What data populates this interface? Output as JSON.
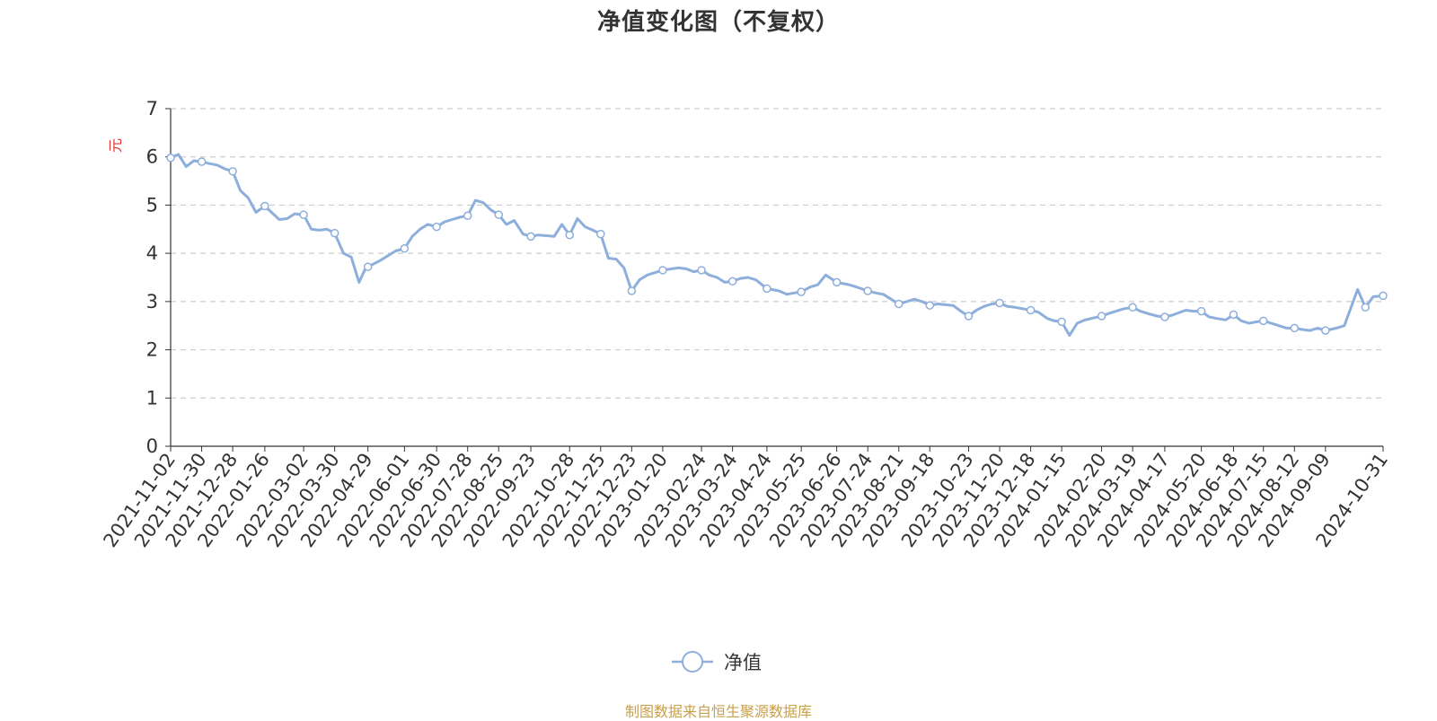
{
  "title": "净值变化图（不复权）",
  "source_note": "制图数据来自恒生聚源数据库",
  "legend": {
    "label": "净值",
    "icon": "circle-line-icon"
  },
  "colors": {
    "series": "#8eaedb",
    "axis": "#333333",
    "grid": "#cccccc",
    "unit": "#e03030",
    "source": "#c8a04a"
  },
  "chart_data": {
    "type": "line",
    "title": "净值变化图（不复权）",
    "ylabel": "元",
    "ylim": [
      0,
      7
    ],
    "yticks": [
      0,
      1,
      2,
      3,
      4,
      5,
      6,
      7
    ],
    "grid": true,
    "legend_position": "bottom-center",
    "x_tick_labels": [
      "2021-11-02",
      "2021-11-30",
      "2021-12-28",
      "2022-01-26",
      "2022-03-02",
      "2022-03-30",
      "2022-04-29",
      "2022-06-01",
      "2022-06-30",
      "2022-07-28",
      "2022-08-25",
      "2022-09-23",
      "2022-10-28",
      "2022-11-25",
      "2022-12-23",
      "2023-01-20",
      "2023-02-24",
      "2023-03-24",
      "2023-04-24",
      "2023-05-25",
      "2023-06-26",
      "2023-07-24",
      "2023-08-21",
      "2023-09-18",
      "2023-10-23",
      "2023-11-20",
      "2023-12-18",
      "2024-01-15",
      "2024-02-20",
      "2024-03-19",
      "2024-04-17",
      "2024-05-20",
      "2024-06-18",
      "2024-07-15",
      "2024-08-12",
      "2024-09-09",
      "2024-10-31"
    ],
    "series": [
      {
        "name": "净值",
        "x": [
          "2021-11-02",
          "2021-11-09",
          "2021-11-16",
          "2021-11-23",
          "2021-11-30",
          "2021-12-07",
          "2021-12-14",
          "2021-12-21",
          "2021-12-28",
          "2022-01-04",
          "2022-01-11",
          "2022-01-18",
          "2022-01-26",
          "2022-02-08",
          "2022-02-15",
          "2022-02-22",
          "2022-03-02",
          "2022-03-09",
          "2022-03-16",
          "2022-03-23",
          "2022-03-30",
          "2022-04-07",
          "2022-04-14",
          "2022-04-21",
          "2022-04-27",
          "2022-04-29",
          "2022-05-10",
          "2022-05-17",
          "2022-05-24",
          "2022-06-01",
          "2022-06-08",
          "2022-06-15",
          "2022-06-22",
          "2022-06-30",
          "2022-07-07",
          "2022-07-14",
          "2022-07-21",
          "2022-07-28",
          "2022-08-04",
          "2022-08-11",
          "2022-08-18",
          "2022-08-25",
          "2022-09-01",
          "2022-09-08",
          "2022-09-16",
          "2022-09-23",
          "2022-09-30",
          "2022-10-14",
          "2022-10-21",
          "2022-10-28",
          "2022-11-04",
          "2022-11-11",
          "2022-11-18",
          "2022-11-25",
          "2022-12-02",
          "2022-12-09",
          "2022-12-16",
          "2022-12-23",
          "2022-12-30",
          "2023-01-06",
          "2023-01-13",
          "2023-01-20",
          "2023-02-03",
          "2023-02-10",
          "2023-02-17",
          "2023-02-24",
          "2023-03-03",
          "2023-03-10",
          "2023-03-17",
          "2023-03-24",
          "2023-03-31",
          "2023-04-07",
          "2023-04-14",
          "2023-04-24",
          "2023-05-05",
          "2023-05-12",
          "2023-05-19",
          "2023-05-25",
          "2023-06-02",
          "2023-06-09",
          "2023-06-16",
          "2023-06-26",
          "2023-07-07",
          "2023-07-14",
          "2023-07-24",
          "2023-07-31",
          "2023-08-07",
          "2023-08-14",
          "2023-08-21",
          "2023-08-28",
          "2023-09-04",
          "2023-09-11",
          "2023-09-18",
          "2023-09-25",
          "2023-10-09",
          "2023-10-16",
          "2023-10-23",
          "2023-10-30",
          "2023-11-06",
          "2023-11-13",
          "2023-11-20",
          "2023-11-27",
          "2023-12-04",
          "2023-12-11",
          "2023-12-18",
          "2023-12-25",
          "2024-01-02",
          "2024-01-08",
          "2024-01-15",
          "2024-01-22",
          "2024-01-29",
          "2024-02-05",
          "2024-02-20",
          "2024-02-26",
          "2024-03-04",
          "2024-03-11",
          "2024-03-19",
          "2024-03-26",
          "2024-04-02",
          "2024-04-10",
          "2024-04-17",
          "2024-04-24",
          "2024-05-06",
          "2024-05-13",
          "2024-05-20",
          "2024-05-27",
          "2024-06-03",
          "2024-06-11",
          "2024-06-18",
          "2024-06-25",
          "2024-07-02",
          "2024-07-09",
          "2024-07-15",
          "2024-07-22",
          "2024-07-29",
          "2024-08-05",
          "2024-08-12",
          "2024-08-19",
          "2024-08-26",
          "2024-09-02",
          "2024-09-09",
          "2024-09-19",
          "2024-09-26",
          "2024-10-08",
          "2024-10-15",
          "2024-10-22",
          "2024-10-31"
        ],
        "values": [
          5.98,
          6.05,
          5.8,
          5.92,
          5.9,
          5.86,
          5.83,
          5.75,
          5.7,
          5.3,
          5.15,
          4.85,
          4.98,
          4.7,
          4.72,
          4.82,
          4.8,
          4.5,
          4.48,
          4.5,
          4.42,
          4.0,
          3.92,
          3.4,
          3.7,
          3.72,
          3.85,
          3.95,
          4.05,
          4.1,
          4.35,
          4.5,
          4.6,
          4.55,
          4.65,
          4.7,
          4.75,
          4.78,
          5.1,
          5.05,
          4.9,
          4.8,
          4.6,
          4.68,
          4.4,
          4.35,
          4.38,
          4.35,
          4.6,
          4.38,
          4.72,
          4.55,
          4.48,
          4.4,
          3.9,
          3.88,
          3.7,
          3.22,
          3.45,
          3.55,
          3.6,
          3.65,
          3.7,
          3.68,
          3.62,
          3.65,
          3.55,
          3.5,
          3.4,
          3.42,
          3.48,
          3.5,
          3.45,
          3.27,
          3.22,
          3.15,
          3.18,
          3.2,
          3.3,
          3.35,
          3.55,
          3.4,
          3.35,
          3.3,
          3.22,
          3.18,
          3.15,
          3.05,
          2.95,
          3.0,
          3.05,
          3.0,
          2.92,
          2.95,
          2.92,
          2.8,
          2.7,
          2.82,
          2.9,
          2.95,
          2.97,
          2.9,
          2.88,
          2.85,
          2.82,
          2.78,
          2.65,
          2.6,
          2.58,
          2.3,
          2.55,
          2.62,
          2.7,
          2.75,
          2.8,
          2.85,
          2.88,
          2.8,
          2.75,
          2.7,
          2.68,
          2.72,
          2.82,
          2.8,
          2.8,
          2.68,
          2.65,
          2.62,
          2.73,
          2.6,
          2.55,
          2.58,
          2.6,
          2.55,
          2.5,
          2.45,
          2.45,
          2.42,
          2.4,
          2.45,
          2.4,
          2.45,
          2.5,
          3.25,
          2.88,
          3.1,
          3.12
        ],
        "marked_points": [
          "2021-11-02",
          "2021-11-30",
          "2021-12-28",
          "2022-01-26",
          "2022-03-02",
          "2022-03-30",
          "2022-04-29",
          "2022-06-01",
          "2022-06-30",
          "2022-07-28",
          "2022-08-25",
          "2022-09-23",
          "2022-10-28",
          "2022-11-25",
          "2022-12-23",
          "2023-01-20",
          "2023-02-24",
          "2023-03-24",
          "2023-04-24",
          "2023-05-25",
          "2023-06-26",
          "2023-07-24",
          "2023-08-21",
          "2023-09-18",
          "2023-10-23",
          "2023-11-20",
          "2023-12-18",
          "2024-01-15",
          "2024-02-20",
          "2024-03-19",
          "2024-04-17",
          "2024-05-20",
          "2024-06-18",
          "2024-07-15",
          "2024-08-12",
          "2024-09-09",
          "2024-10-15",
          "2024-10-31"
        ]
      }
    ]
  }
}
